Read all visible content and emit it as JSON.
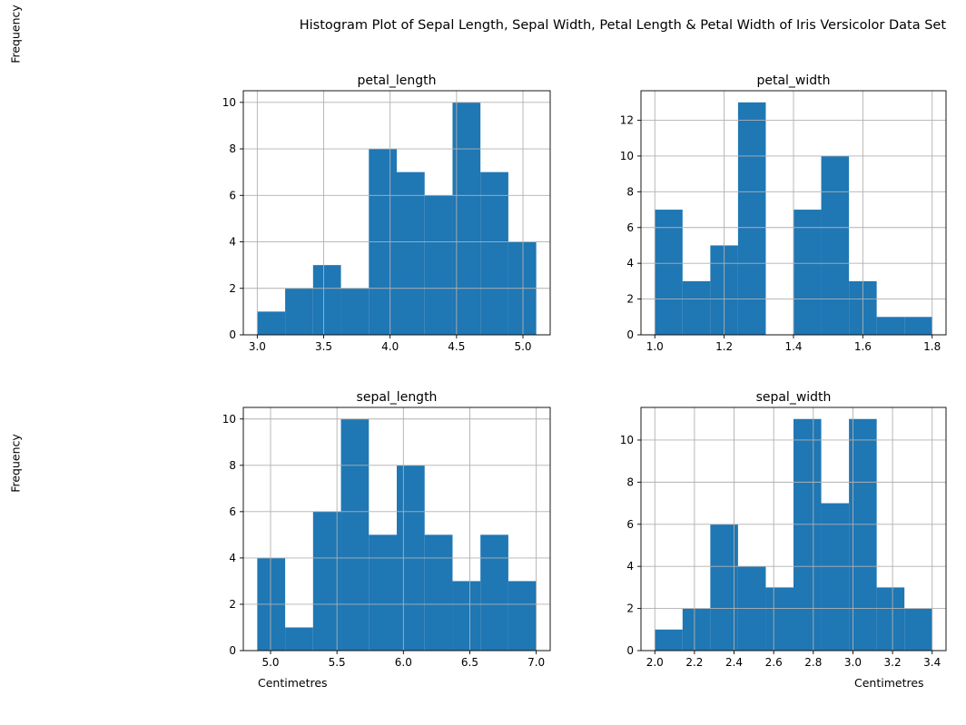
{
  "suptitle": "Histogram Plot of Sepal Length, Sepal Width, Petal Length & Petal Width of Iris Versicolor Data Set",
  "ylabels": [
    "Frequency",
    "Frequency"
  ],
  "xlabels": [
    "Centimetres",
    "Centimetres"
  ],
  "bar_color": "#1f77b4",
  "grid_color": "#b0b0b0",
  "chart_data": [
    {
      "type": "bar",
      "title": "petal_length",
      "bin_edges": [
        3.0,
        3.21,
        3.42,
        3.63,
        3.84,
        4.05,
        4.26,
        4.47,
        4.68,
        4.89,
        5.1
      ],
      "values": [
        1,
        2,
        3,
        2,
        8,
        7,
        6,
        10,
        7,
        4
      ],
      "xlim": [
        2.895,
        5.205
      ],
      "ylim": [
        0,
        10.5
      ],
      "xticks": [
        3.0,
        3.5,
        4.0,
        4.5,
        5.0
      ],
      "xtick_labels": [
        "3.0",
        "3.5",
        "4.0",
        "4.5",
        "5.0"
      ],
      "yticks": [
        0,
        2,
        4,
        6,
        8,
        10
      ],
      "ytick_labels": [
        "0",
        "2",
        "4",
        "6",
        "8",
        "10"
      ],
      "grid": true
    },
    {
      "type": "bar",
      "title": "petal_width",
      "bin_edges": [
        1.0,
        1.08,
        1.16,
        1.24,
        1.32,
        1.4,
        1.48,
        1.56,
        1.64,
        1.72,
        1.8
      ],
      "values": [
        7,
        3,
        5,
        13,
        0,
        7,
        10,
        3,
        1,
        1
      ],
      "xlim": [
        0.96,
        1.84
      ],
      "ylim": [
        0,
        13.65
      ],
      "xticks": [
        1.0,
        1.2,
        1.4,
        1.6,
        1.8
      ],
      "xtick_labels": [
        "1.0",
        "1.2",
        "1.4",
        "1.6",
        "1.8"
      ],
      "yticks": [
        0,
        2,
        4,
        6,
        8,
        10,
        12
      ],
      "ytick_labels": [
        "0",
        "2",
        "4",
        "6",
        "8",
        "10",
        "12"
      ],
      "grid": true
    },
    {
      "type": "bar",
      "title": "sepal_length",
      "bin_edges": [
        4.9,
        5.11,
        5.32,
        5.53,
        5.74,
        5.95,
        6.16,
        6.37,
        6.58,
        6.79,
        7.0
      ],
      "values": [
        4,
        1,
        6,
        10,
        5,
        8,
        5,
        3,
        5,
        3
      ],
      "xlim": [
        4.795,
        7.105
      ],
      "ylim": [
        0,
        10.5
      ],
      "xticks": [
        5.0,
        5.5,
        6.0,
        6.5,
        7.0
      ],
      "xtick_labels": [
        "5.0",
        "5.5",
        "6.0",
        "6.5",
        "7.0"
      ],
      "yticks": [
        0,
        2,
        4,
        6,
        8,
        10
      ],
      "ytick_labels": [
        "0",
        "2",
        "4",
        "6",
        "8",
        "10"
      ],
      "grid": true
    },
    {
      "type": "bar",
      "title": "sepal_width",
      "bin_edges": [
        2.0,
        2.14,
        2.28,
        2.42,
        2.56,
        2.7,
        2.84,
        2.98,
        3.12,
        3.26,
        3.4
      ],
      "values": [
        1,
        2,
        6,
        4,
        3,
        11,
        7,
        11,
        3,
        2
      ],
      "xlim": [
        1.93,
        3.47
      ],
      "ylim": [
        0,
        11.55
      ],
      "xticks": [
        2.0,
        2.2,
        2.4,
        2.6,
        2.8,
        3.0,
        3.2,
        3.4
      ],
      "xtick_labels": [
        "2.0",
        "2.2",
        "2.4",
        "2.6",
        "2.8",
        "3.0",
        "3.2",
        "3.4"
      ],
      "yticks": [
        0,
        2,
        4,
        6,
        8,
        10
      ],
      "ytick_labels": [
        "0",
        "2",
        "4",
        "6",
        "8",
        "10"
      ],
      "grid": true
    }
  ]
}
